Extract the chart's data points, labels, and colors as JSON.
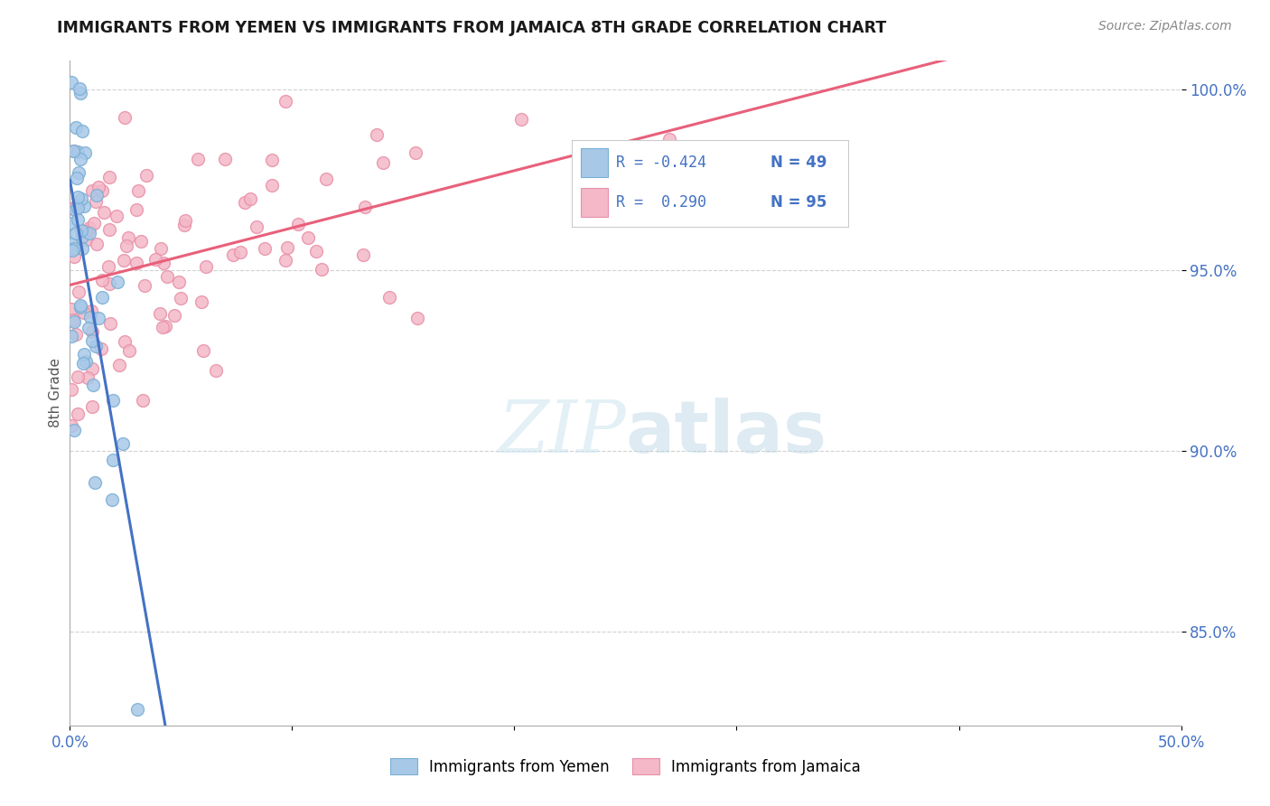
{
  "title": "IMMIGRANTS FROM YEMEN VS IMMIGRANTS FROM JAMAICA 8TH GRADE CORRELATION CHART",
  "source": "Source: ZipAtlas.com",
  "ylabel": "8th Grade",
  "xmin": 0.0,
  "xmax": 0.5,
  "ymin": 0.824,
  "ymax": 1.008,
  "yticks": [
    0.85,
    0.9,
    0.95,
    1.0
  ],
  "ytick_labels": [
    "85.0%",
    "90.0%",
    "95.0%",
    "100.0%"
  ],
  "xticks": [
    0.0,
    0.1,
    0.2,
    0.3,
    0.4,
    0.5
  ],
  "xtick_labels": [
    "0.0%",
    "",
    "",
    "",
    "",
    "50.0%"
  ],
  "color_yemen": "#a8c8e8",
  "color_yemen_edge": "#7aafd4",
  "color_jamaica": "#f4b8c8",
  "color_jamaica_edge": "#e890a8",
  "color_yemen_line": "#4472c4",
  "color_jamaica_line": "#e8607a",
  "color_dashed": "#aaaaaa",
  "legend_blue_text": "#4472c4",
  "legend_label_color": "#333333"
}
